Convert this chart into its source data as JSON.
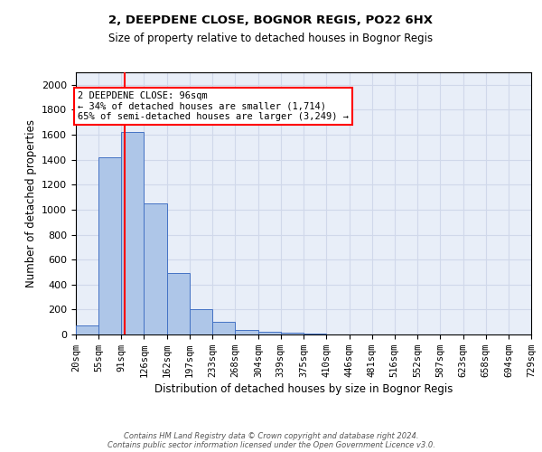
{
  "title1": "2, DEEPDENE CLOSE, BOGNOR REGIS, PO22 6HX",
  "title2": "Size of property relative to detached houses in Bognor Regis",
  "xlabel": "Distribution of detached houses by size in Bognor Regis",
  "ylabel": "Number of detached properties",
  "bin_edges": [
    20,
    55,
    91,
    126,
    162,
    197,
    233,
    268,
    304,
    339,
    375,
    410,
    446,
    481,
    516,
    552,
    587,
    623,
    658,
    694,
    729
  ],
  "bar_heights": [
    75,
    1420,
    1620,
    1050,
    490,
    200,
    105,
    35,
    25,
    15,
    5,
    3,
    2,
    1,
    1,
    0,
    0,
    0,
    0,
    0
  ],
  "bar_color": "#aec6e8",
  "bar_edge_color": "#4472c4",
  "grid_color": "#d0d8ea",
  "bg_color": "#e8eef8",
  "red_line_x": 96,
  "annotation_line1": "2 DEEPDENE CLOSE: 96sqm",
  "annotation_line2": "← 34% of detached houses are smaller (1,714)",
  "annotation_line3": "65% of semi-detached houses are larger (3,249) →",
  "annotation_box_color": "white",
  "annotation_border_color": "red",
  "footnote": "Contains HM Land Registry data © Crown copyright and database right 2024.\nContains public sector information licensed under the Open Government Licence v3.0.",
  "ylim": [
    0,
    2100
  ],
  "yticks": [
    0,
    200,
    400,
    600,
    800,
    1000,
    1200,
    1400,
    1600,
    1800,
    2000
  ]
}
